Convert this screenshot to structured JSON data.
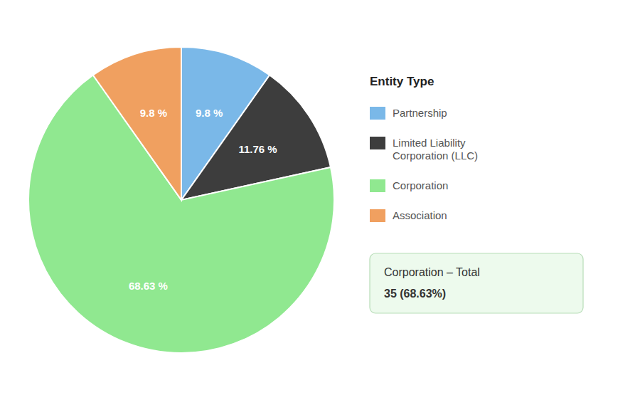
{
  "chart_data": {
    "type": "pie",
    "categories": [
      "Partnership",
      "Limited Liability\nCorporation (LLC)",
      "Corporation",
      "Association"
    ],
    "values": [
      9.8,
      11.76,
      68.63,
      9.8
    ],
    "value_labels": [
      "9.8 %",
      "11.76 %",
      "68.63 %",
      "9.8 %"
    ],
    "colors": [
      "#7ab8e8",
      "#3d3d3d",
      "#90e890",
      "#f0a060"
    ],
    "data_labels": true,
    "legend": "right",
    "legend_title": "Entity Type",
    "annotations": [
      "Corporation – Total",
      "35 (68.63%)"
    ]
  }
}
